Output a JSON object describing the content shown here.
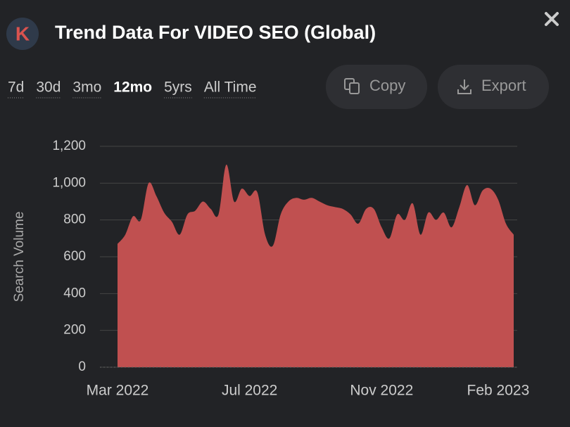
{
  "header": {
    "logo": "K",
    "title": "Trend Data For VIDEO SEO (Global)"
  },
  "tabs": [
    {
      "label": "7d",
      "active": false
    },
    {
      "label": "30d",
      "active": false
    },
    {
      "label": "3mo",
      "active": false
    },
    {
      "label": "12mo",
      "active": true
    },
    {
      "label": "5yrs",
      "active": false
    },
    {
      "label": "All Time",
      "active": false
    }
  ],
  "buttons": {
    "copy": "Copy",
    "export": "Export"
  },
  "chart_data": {
    "type": "area",
    "color": "#c05050",
    "ylabel": "Search Volume",
    "categories": [
      "Mar 2022",
      null,
      null,
      null,
      null,
      null,
      null,
      null,
      null,
      null,
      null,
      null,
      null,
      null,
      null,
      null,
      null,
      "Jul 2022",
      null,
      null,
      null,
      null,
      null,
      null,
      null,
      null,
      null,
      null,
      null,
      null,
      null,
      null,
      null,
      null,
      "Nov 2022",
      null,
      null,
      null,
      null,
      null,
      null,
      null,
      null,
      null,
      null,
      null,
      null,
      null,
      null,
      "Feb 2023",
      null,
      null
    ],
    "values": [
      670,
      720,
      820,
      800,
      1000,
      930,
      840,
      790,
      720,
      830,
      850,
      900,
      860,
      830,
      1100,
      900,
      970,
      930,
      950,
      720,
      660,
      830,
      900,
      920,
      910,
      920,
      900,
      880,
      870,
      860,
      830,
      780,
      860,
      860,
      760,
      700,
      830,
      800,
      890,
      720,
      840,
      800,
      840,
      760,
      870,
      990,
      880,
      960,
      970,
      910,
      780,
      720
    ],
    "ylim": [
      0,
      1200
    ],
    "yticks": [
      0,
      200,
      400,
      600,
      800,
      {
        "value": 1000,
        "label": "1,000"
      },
      {
        "value": 1200,
        "label": "1,200"
      }
    ],
    "grid": true
  }
}
